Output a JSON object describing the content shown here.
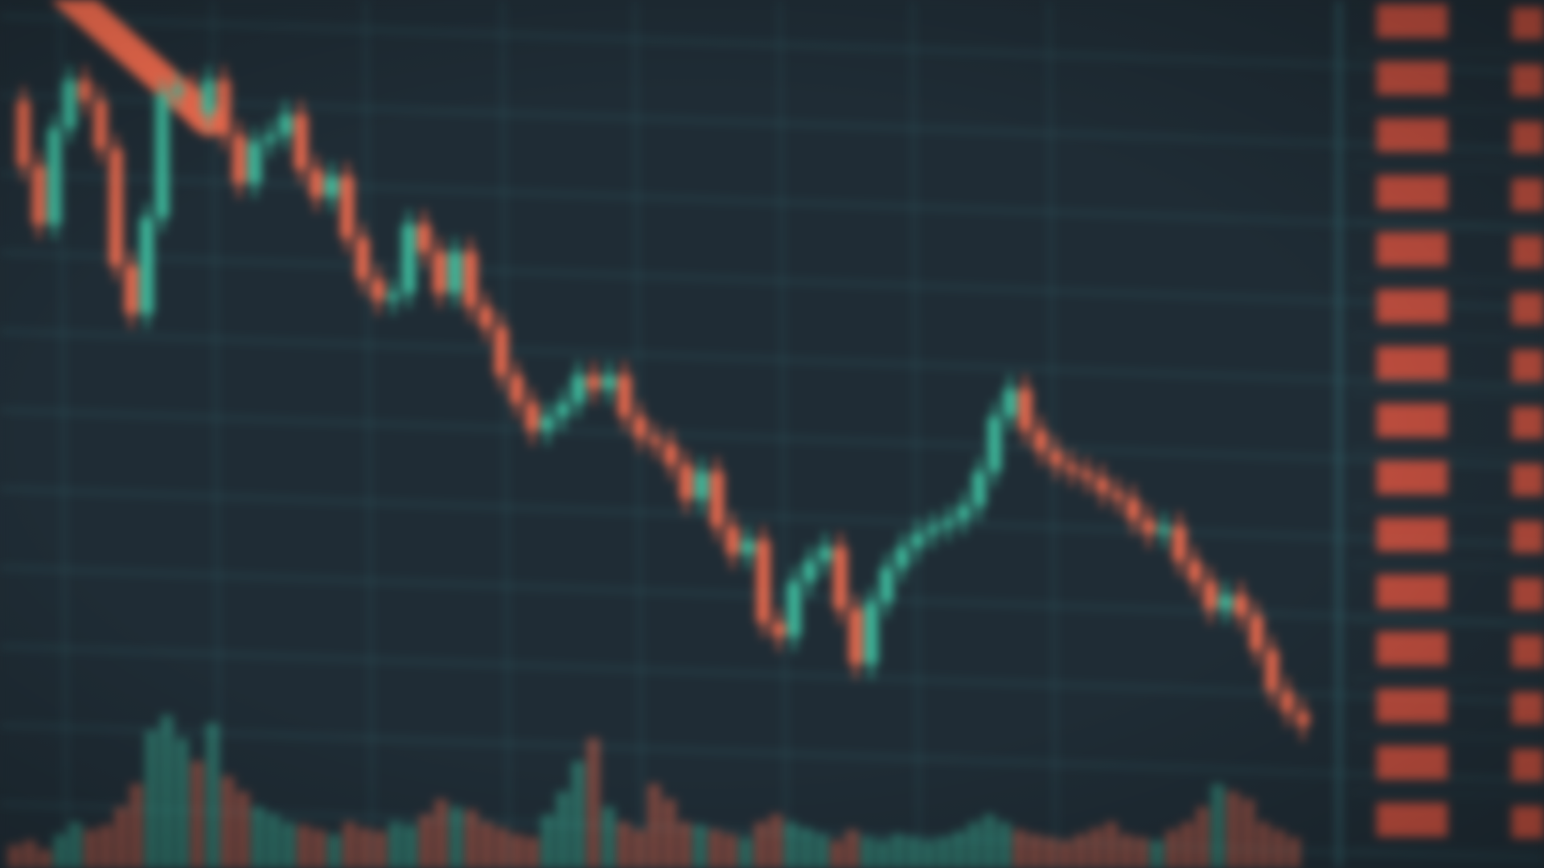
{
  "scene": {
    "description_free": true,
    "colors": {
      "background": "#1f2c35",
      "grid": "#2f5a62",
      "bear_candle": "#f06b4e",
      "bull_candle": "#3fbfa0",
      "panel_text": "#d9543f"
    },
    "price_series": [
      1000,
      905,
      820,
      960,
      1030,
      1000,
      930,
      760,
      690,
      830,
      1010,
      1020,
      980,
      1030,
      950,
      880,
      940,
      950,
      980,
      900,
      860,
      890,
      800,
      740,
      710,
      720,
      820,
      780,
      720,
      780,
      700,
      670,
      600,
      560,
      520,
      540,
      560,
      600,
      580,
      600,
      540,
      510,
      500,
      470,
      420,
      460,
      380,
      340,
      360,
      240,
      220,
      300,
      330,
      350,
      260,
      180,
      270,
      320,
      350,
      370,
      380,
      390,
      410,
      460,
      540,
      580,
      520,
      490,
      470,
      460,
      450,
      430,
      420,
      390,
      370,
      380,
      330,
      300,
      260,
      280,
      250,
      200,
      140,
      110,
      90
    ],
    "volume_series": [
      0.15,
      0.18,
      0.12,
      0.22,
      0.3,
      0.25,
      0.28,
      0.4,
      0.55,
      0.9,
      1.0,
      0.85,
      0.7,
      0.95,
      0.6,
      0.5,
      0.4,
      0.35,
      0.3,
      0.28,
      0.25,
      0.22,
      0.3,
      0.26,
      0.24,
      0.3,
      0.28,
      0.35,
      0.45,
      0.4,
      0.38,
      0.3,
      0.26,
      0.22,
      0.2,
      0.35,
      0.5,
      0.7,
      0.85,
      0.4,
      0.3,
      0.25,
      0.55,
      0.45,
      0.3,
      0.28,
      0.25,
      0.22,
      0.2,
      0.3,
      0.35,
      0.3,
      0.26,
      0.22,
      0.18,
      0.25,
      0.2,
      0.18,
      0.22,
      0.2,
      0.18,
      0.2,
      0.24,
      0.3,
      0.35,
      0.3,
      0.25,
      0.22,
      0.2,
      0.18,
      0.22,
      0.26,
      0.3,
      0.22,
      0.2,
      0.18,
      0.25,
      0.3,
      0.4,
      0.55,
      0.5,
      0.45,
      0.3,
      0.25,
      0.2
    ],
    "side_panel_rows": 15
  }
}
